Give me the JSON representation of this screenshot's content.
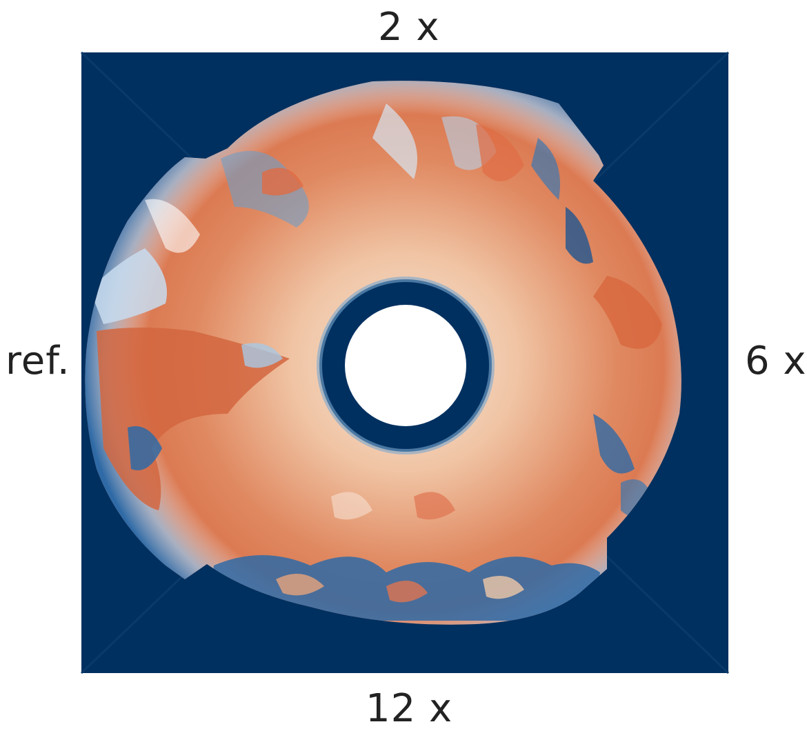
{
  "labels": {
    "top": "2 x",
    "bottom": "12 x",
    "left": "ref.",
    "right": "6 x"
  },
  "colors": {
    "background": "#003060",
    "warm": "#d8683f",
    "warm_light": "#f0b890",
    "cool": "#3a78b0",
    "cool_light": "#c8dcee",
    "hole": "#ffffff"
  }
}
